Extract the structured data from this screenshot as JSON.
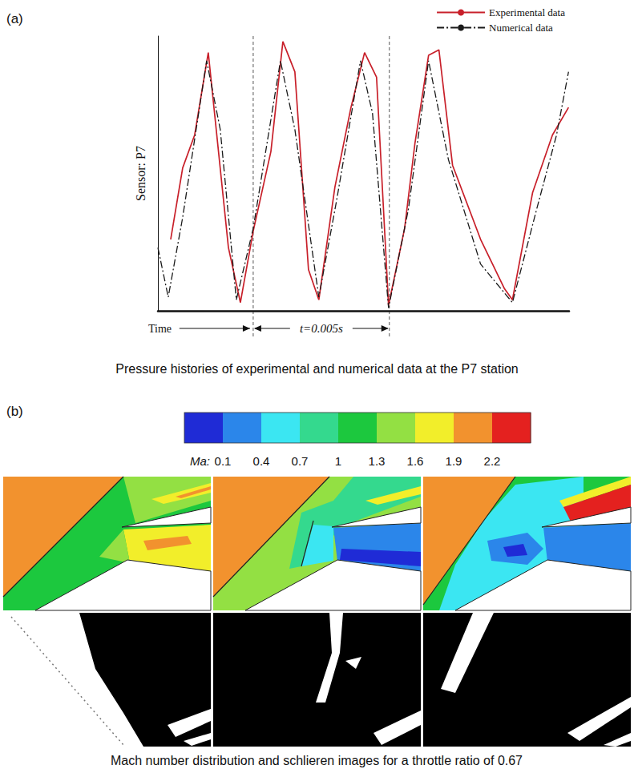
{
  "chart_data": {
    "type": "line",
    "panel_label": "(a)",
    "caption": "Pressure histories of experimental and numerical data at the P7 station",
    "xlabel": "Time",
    "ylabel": "Sensor: P7",
    "xlim": [
      0,
      0.0151
    ],
    "ylim": [
      0,
      1
    ],
    "tick_labels": false,
    "grid": false,
    "legend": "top-right",
    "annotations": [
      {
        "text": "t=0.005s",
        "from": 0.0035,
        "to": 0.0085
      }
    ],
    "series": [
      {
        "name": "Experimental data",
        "color": "#c8202a",
        "line_style": "solid",
        "x": [
          0.00047,
          0.00091,
          0.00135,
          0.00185,
          0.00259,
          0.00303,
          0.0035,
          0.00415,
          0.00459,
          0.00503,
          0.00553,
          0.00591,
          0.0065,
          0.00709,
          0.00759,
          0.00803,
          0.00847,
          0.00906,
          0.00944,
          0.00994,
          0.01032,
          0.01082,
          0.01185,
          0.01273,
          0.01302,
          0.01376,
          0.01449,
          0.01508
        ],
        "values": [
          0.26,
          0.52,
          0.64,
          0.94,
          0.23,
          0.03,
          0.29,
          0.58,
          0.98,
          0.87,
          0.15,
          0.04,
          0.45,
          0.74,
          0.94,
          0.85,
          0.02,
          0.3,
          0.61,
          0.93,
          0.95,
          0.53,
          0.26,
          0.08,
          0.04,
          0.43,
          0.64,
          0.74
        ]
      },
      {
        "name": "Numerical data",
        "color": "#1a1a1a",
        "line_style": "dashdot",
        "x": [
          0,
          0.00038,
          0.00091,
          0.00179,
          0.00229,
          0.00288,
          0.0035,
          0.0045,
          0.00503,
          0.00591,
          0.00656,
          0.00744,
          0.00788,
          0.00847,
          0.0092,
          0.00994,
          0.01067,
          0.01185,
          0.01302,
          0.01391,
          0.01464,
          0.01508
        ],
        "values": [
          0.23,
          0.05,
          0.34,
          0.91,
          0.66,
          0.04,
          0.3,
          0.91,
          0.66,
          0.05,
          0.4,
          0.91,
          0.72,
          0.01,
          0.37,
          0.91,
          0.55,
          0.17,
          0.03,
          0.37,
          0.64,
          0.87
        ]
      }
    ]
  },
  "figure_b": {
    "panel_label": "(b)",
    "caption": "Mach number distribution and schlieren images for a throttle ratio of 0.67",
    "colorbar": {
      "label": "Ma:",
      "range": [
        -0.2,
        2.5
      ],
      "ticks": [
        0.1,
        0.4,
        0.7,
        1,
        1.3,
        1.6,
        1.9,
        2.2
      ],
      "colors": [
        "#1f2bd6",
        "#2b86ea",
        "#3be6f2",
        "#34d98e",
        "#1cc83e",
        "#93e043",
        "#f2ee2a",
        "#f2922e",
        "#e4211f"
      ]
    }
  }
}
